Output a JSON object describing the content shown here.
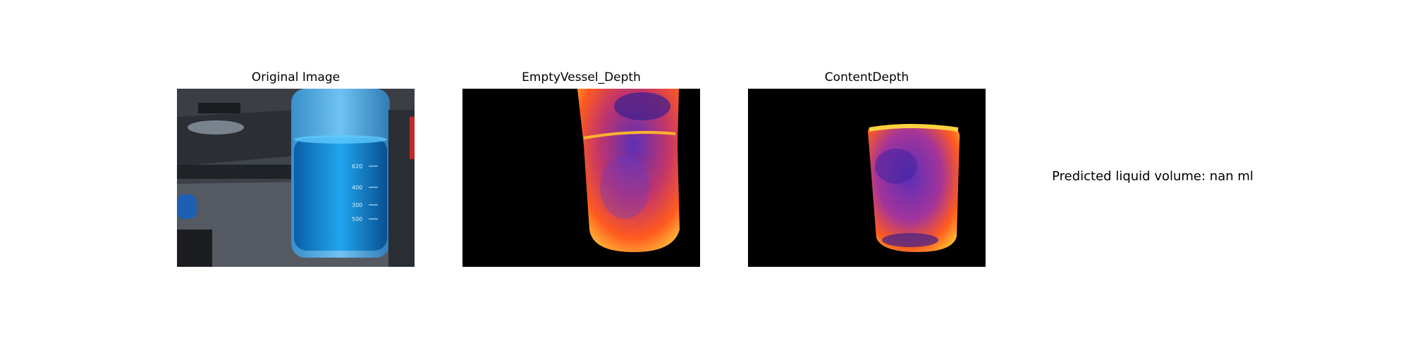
{
  "panels": [
    {
      "title": "Original Image"
    },
    {
      "title": "EmptyVessel_Depth"
    },
    {
      "title": "ContentDepth"
    }
  ],
  "result_text": "Predicted liquid volume: nan ml",
  "graduations": [
    "620",
    "400",
    "300",
    "500"
  ],
  "colors": {
    "liquid": "#1f8fd6",
    "depth_hot": "#ffd23f",
    "depth_mid": "#ff5a1f",
    "depth_cool": "#5b2fb8"
  }
}
